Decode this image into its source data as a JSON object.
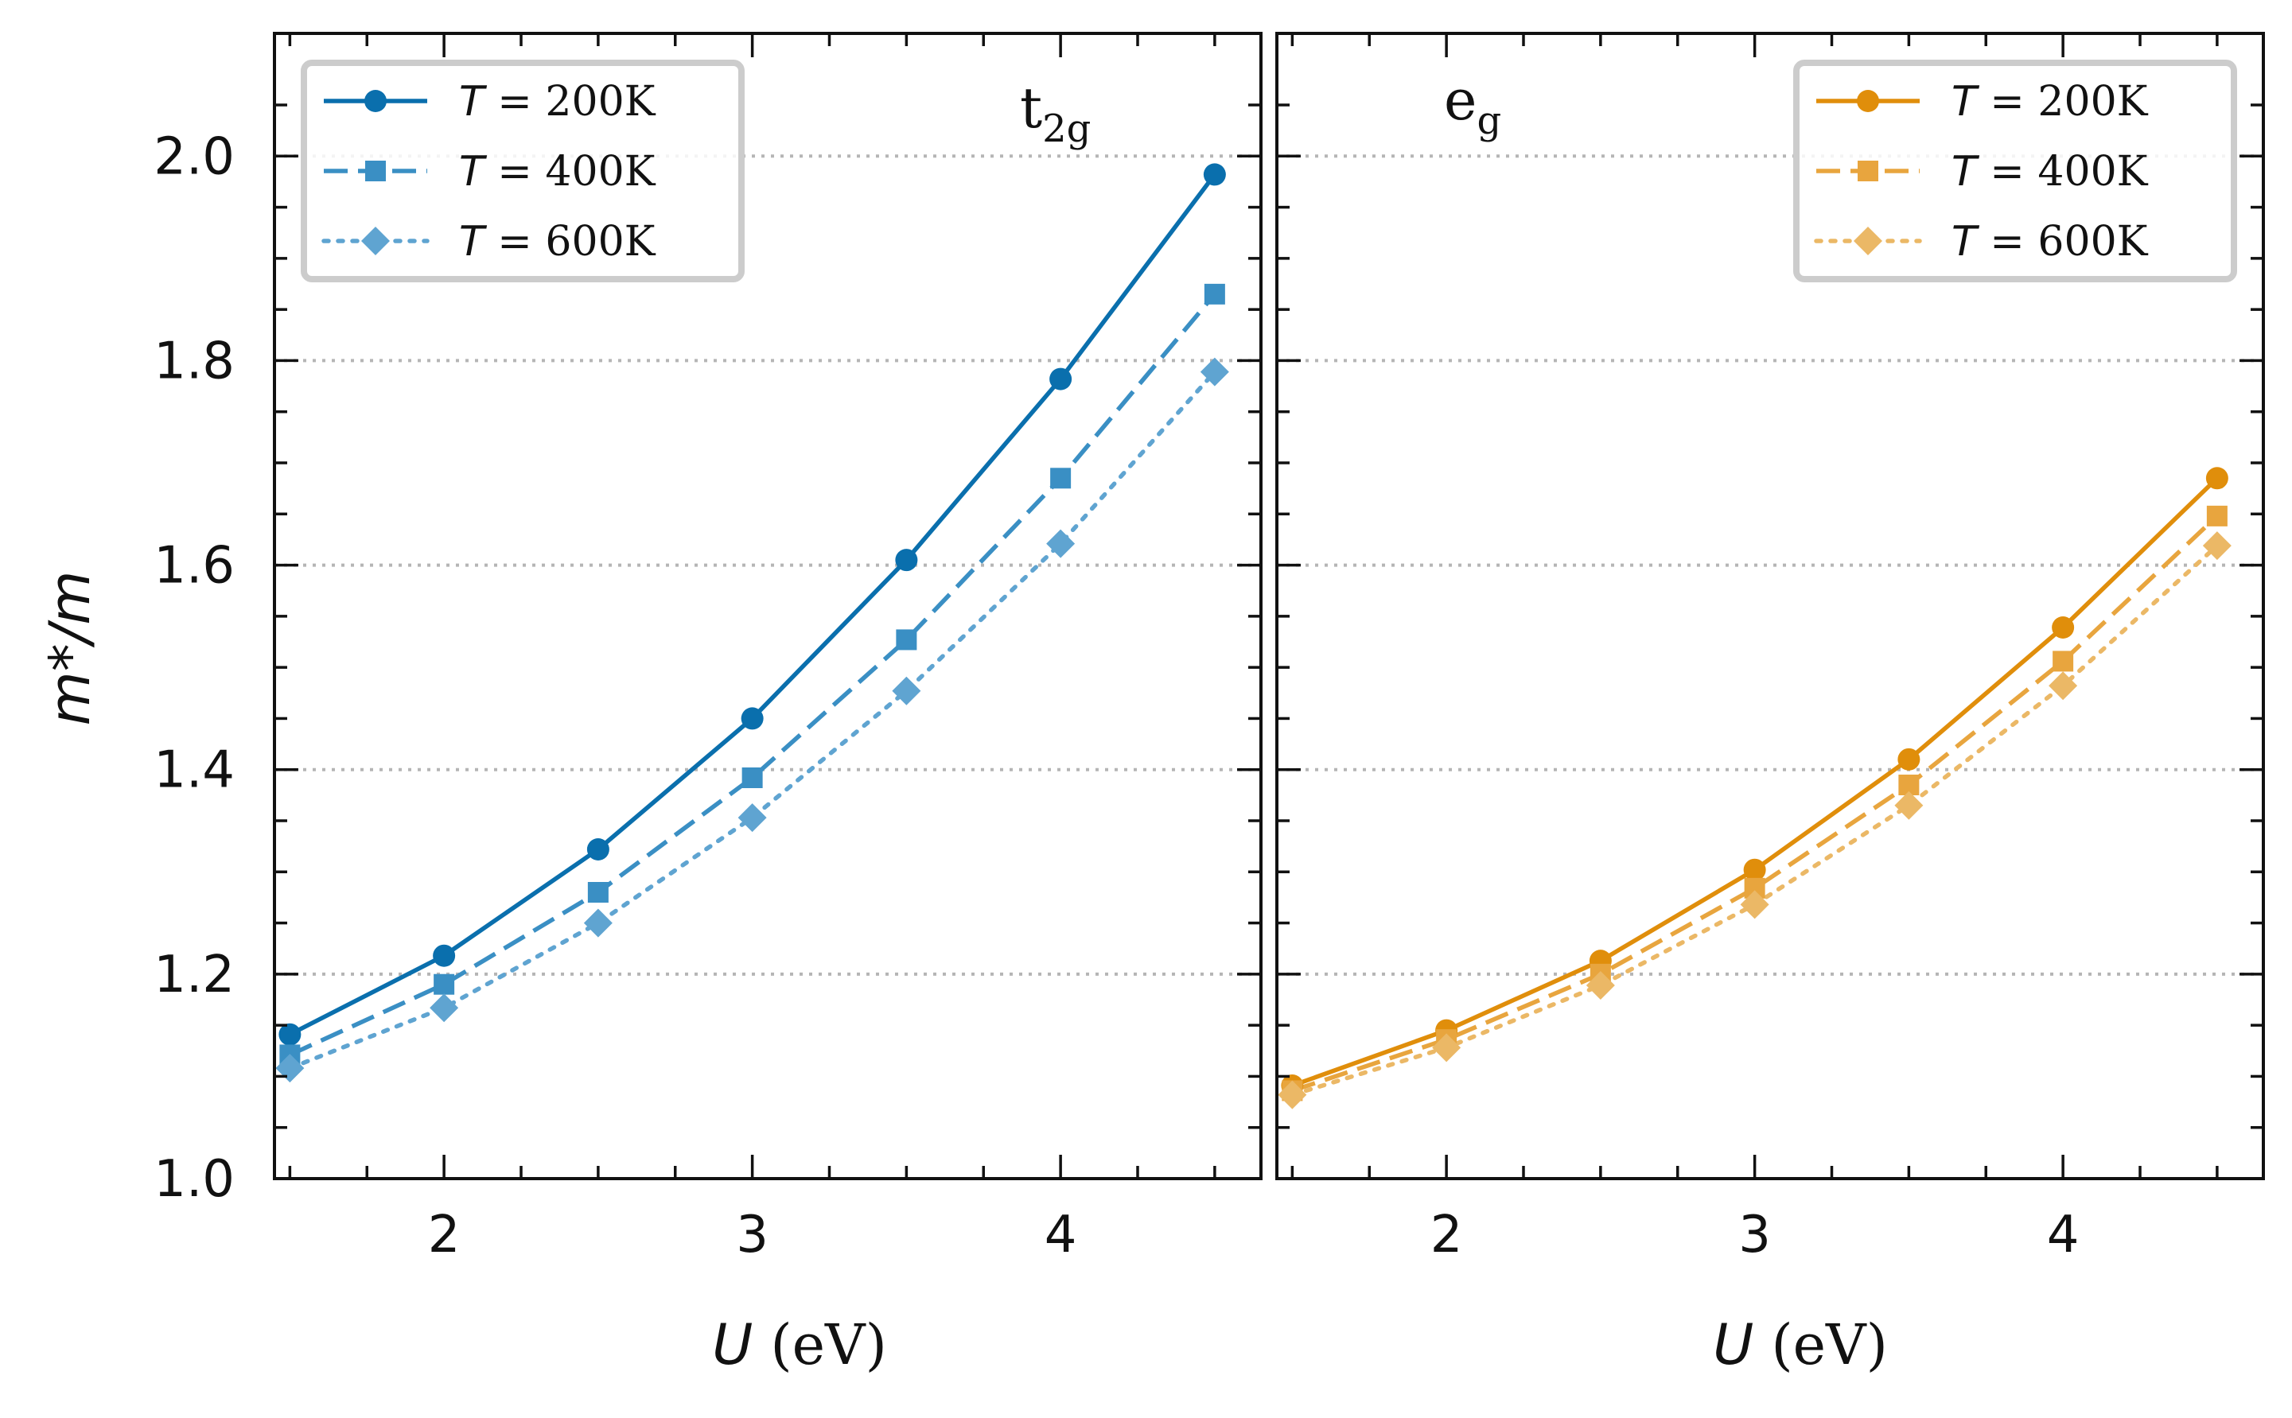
{
  "chart_data": [
    {
      "type": "line",
      "panel": "left",
      "annotation": {
        "main": "t",
        "sub": "2g"
      },
      "ylabel": "m*/m",
      "xlabel": {
        "var": "U",
        "unit": "(eV)"
      },
      "xlim": [
        1.45,
        4.65
      ],
      "ylim": [
        1.0,
        2.12
      ],
      "xticks": [
        2,
        3,
        4
      ],
      "xtick_labels": [
        "2",
        "3",
        "4"
      ],
      "yticks": [
        1.0,
        1.2,
        1.4,
        1.6,
        1.8,
        2.0
      ],
      "ytick_labels": [
        "1.0",
        "1.2",
        "1.4",
        "1.6",
        "1.8",
        "2.0"
      ],
      "grid": "horizontal dotted",
      "legend_position": "top-left",
      "x": [
        1.5,
        2.0,
        2.5,
        3.0,
        3.5,
        4.0,
        4.5
      ],
      "series": [
        {
          "name": "T = 200K",
          "legend_T": "T",
          "legend_rest": " = 200K",
          "color": "#0a6fad",
          "style": "solid",
          "marker": "circle",
          "values": [
            1.141,
            1.218,
            1.322,
            1.45,
            1.605,
            1.782,
            1.982
          ]
        },
        {
          "name": "T = 400K",
          "legend_T": "T",
          "legend_rest": " = 400K",
          "color": "#3a8fc4",
          "style": "dashed",
          "marker": "square",
          "values": [
            1.121,
            1.19,
            1.28,
            1.392,
            1.527,
            1.685,
            1.865
          ]
        },
        {
          "name": "T = 600K",
          "legend_T": "T",
          "legend_rest": " = 600K",
          "color": "#5fa4d1",
          "style": "dotted",
          "marker": "diamond",
          "values": [
            1.108,
            1.167,
            1.25,
            1.353,
            1.477,
            1.621,
            1.789
          ]
        }
      ]
    },
    {
      "type": "line",
      "panel": "right",
      "annotation": {
        "main": "e",
        "sub": "g"
      },
      "xlabel": {
        "var": "U",
        "unit": "(eV)"
      },
      "xlim": [
        1.45,
        4.65
      ],
      "ylim": [
        1.0,
        2.12
      ],
      "xticks": [
        2,
        3,
        4
      ],
      "xtick_labels": [
        "2",
        "3",
        "4"
      ],
      "grid": "horizontal dotted",
      "legend_position": "top-right",
      "x": [
        1.5,
        2.0,
        2.5,
        3.0,
        3.5,
        4.0,
        4.5
      ],
      "series": [
        {
          "name": "T = 200K",
          "legend_T": "T",
          "legend_rest": " = 200K",
          "color": "#e08e0b",
          "style": "solid",
          "marker": "circle",
          "values": [
            1.091,
            1.145,
            1.213,
            1.302,
            1.41,
            1.539,
            1.685
          ]
        },
        {
          "name": "T = 400K",
          "legend_T": "T",
          "legend_rest": " = 400K",
          "color": "#e8a53e",
          "style": "dashed",
          "marker": "square",
          "values": [
            1.086,
            1.136,
            1.2,
            1.284,
            1.385,
            1.506,
            1.648
          ]
        },
        {
          "name": "T = 600K",
          "legend_T": "T",
          "legend_rest": " = 600K",
          "color": "#ebb866",
          "style": "dotted",
          "marker": "diamond",
          "values": [
            1.082,
            1.128,
            1.189,
            1.268,
            1.365,
            1.482,
            1.619
          ]
        }
      ]
    }
  ]
}
